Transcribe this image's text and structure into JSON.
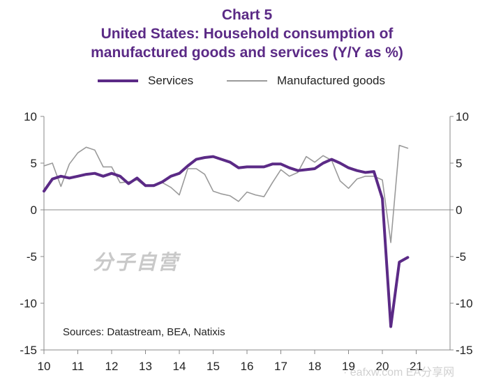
{
  "title": {
    "line1": "Chart 5",
    "line2": "United States: Household consumption of",
    "line3": "manufactured goods and services (Y/Y as %)"
  },
  "legend": {
    "services": "Services",
    "manufactured": "Manufactured goods"
  },
  "sources": "Sources:  Datastream,  BEA, Natixis",
  "watermark": "分子自营",
  "footer_mark": "· eafxw.com  EA分享网",
  "colors": {
    "services": "#5b2a86",
    "manufactured": "#9a9a9a",
    "title": "#5b2a86"
  },
  "chart_data": {
    "type": "line",
    "x_ticks": [
      "10",
      "11",
      "12",
      "13",
      "14",
      "15",
      "16",
      "17",
      "18",
      "19",
      "20",
      "21"
    ],
    "y_ticks_left": [
      "10",
      "5",
      "0",
      "-5",
      "-10",
      "-15"
    ],
    "y_ticks_right": [
      "10",
      "5",
      "0",
      "-5",
      "-10",
      "-15"
    ],
    "ylim": [
      -15,
      10
    ],
    "xlim": [
      2010.0,
      2022.0
    ],
    "zero_line": true,
    "series": [
      {
        "name": "Services",
        "x": [
          2010.0,
          2010.25,
          2010.5,
          2010.75,
          2011.0,
          2011.25,
          2011.5,
          2011.75,
          2012.0,
          2012.25,
          2012.5,
          2012.75,
          2013.0,
          2013.25,
          2013.5,
          2013.75,
          2014.0,
          2014.25,
          2014.5,
          2014.75,
          2015.0,
          2015.25,
          2015.5,
          2015.75,
          2016.0,
          2016.25,
          2016.5,
          2016.75,
          2017.0,
          2017.25,
          2017.5,
          2017.75,
          2018.0,
          2018.25,
          2018.5,
          2018.75,
          2019.0,
          2019.25,
          2019.5,
          2019.75,
          2020.0,
          2020.25,
          2020.5,
          2020.75
        ],
        "values": [
          2.0,
          3.3,
          3.6,
          3.4,
          3.6,
          3.8,
          3.9,
          3.6,
          3.9,
          3.6,
          2.8,
          3.4,
          2.6,
          2.6,
          3.0,
          3.6,
          3.9,
          4.7,
          5.4,
          5.6,
          5.7,
          5.4,
          5.1,
          4.5,
          4.6,
          4.6,
          4.6,
          4.9,
          4.9,
          4.5,
          4.2,
          4.3,
          4.4,
          5.0,
          5.4,
          5.0,
          4.5,
          4.2,
          4.0,
          4.1,
          1.2,
          -12.5,
          -5.6,
          -5.1
        ]
      },
      {
        "name": "Manufactured goods",
        "x": [
          2010.0,
          2010.25,
          2010.5,
          2010.75,
          2011.0,
          2011.25,
          2011.5,
          2011.75,
          2012.0,
          2012.25,
          2012.5,
          2012.75,
          2013.0,
          2013.25,
          2013.5,
          2013.75,
          2014.0,
          2014.25,
          2014.5,
          2014.75,
          2015.0,
          2015.25,
          2015.5,
          2015.75,
          2016.0,
          2016.25,
          2016.5,
          2016.75,
          2017.0,
          2017.25,
          2017.5,
          2017.75,
          2018.0,
          2018.25,
          2018.5,
          2018.75,
          2019.0,
          2019.25,
          2019.5,
          2019.75,
          2020.0,
          2020.25,
          2020.5,
          2020.75
        ],
        "values": [
          4.7,
          5.0,
          2.5,
          4.9,
          6.1,
          6.7,
          6.4,
          4.6,
          4.6,
          2.9,
          3.0,
          3.2,
          2.5,
          2.7,
          2.9,
          2.4,
          1.6,
          4.4,
          4.4,
          3.8,
          2.0,
          1.7,
          1.5,
          0.9,
          1.9,
          1.6,
          1.4,
          2.9,
          4.3,
          3.6,
          4.0,
          5.7,
          5.1,
          5.8,
          5.3,
          3.1,
          2.3,
          3.3,
          3.6,
          3.6,
          3.2,
          -3.5,
          6.9,
          6.6
        ]
      }
    ]
  }
}
